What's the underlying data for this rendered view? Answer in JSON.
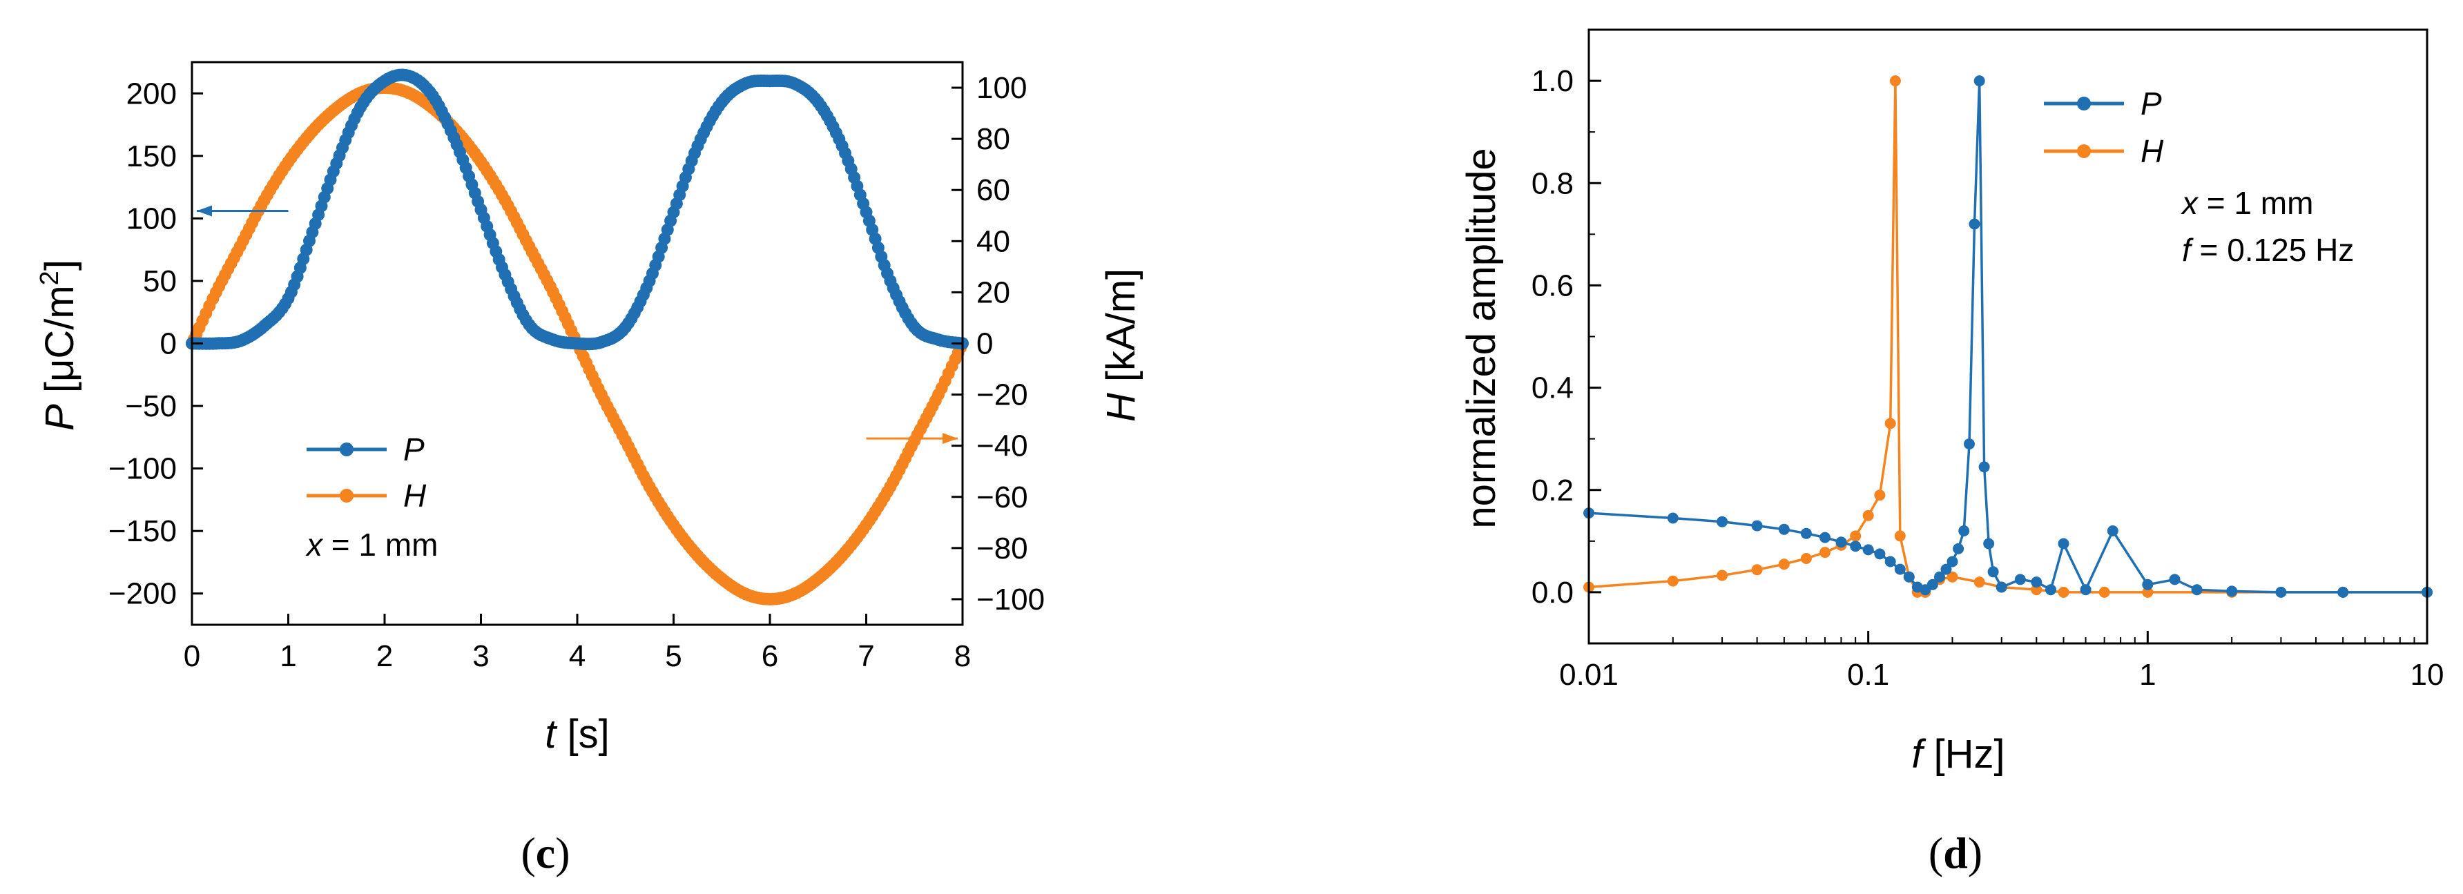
{
  "chart_data": [
    {
      "type": "line",
      "panel_label": "(c)",
      "panel_letter": "c",
      "title": "",
      "xlabel": {
        "var": "t",
        "unit": " [s]"
      },
      "ylabel_left": {
        "var": "P",
        "unit": " [μC/m",
        "sup": "2",
        "close": "]"
      },
      "ylabel_right": {
        "var": "H",
        "unit": " [kA/m]"
      },
      "xlim": [
        0,
        8
      ],
      "ylim_left": [
        -225,
        225
      ],
      "ylim_right": [
        -110,
        110
      ],
      "xticks": [
        0,
        1,
        2,
        3,
        4,
        5,
        6,
        7,
        8
      ],
      "yticks_left": [
        -200,
        -150,
        -100,
        -50,
        0,
        50,
        100,
        150,
        200
      ],
      "yticks_right": [
        -100,
        -80,
        -60,
        -40,
        -20,
        0,
        20,
        40,
        60,
        80,
        100
      ],
      "ytick_labels_left": [
        "−200",
        "−150",
        "−100",
        "−50",
        "0",
        "50",
        "100",
        "150",
        "200"
      ],
      "ytick_labels_right": [
        "−100",
        "−80",
        "−60",
        "−40",
        "−20",
        "0",
        "20",
        "40",
        "60",
        "80",
        "100"
      ],
      "legend": {
        "position": "lower-left",
        "entries": [
          "P",
          "H"
        ],
        "note_var": "x",
        "note_rest": " = 1 mm"
      },
      "series": [
        {
          "name": "P",
          "axis": "left",
          "color": "#1f6fb2",
          "x": [
            0,
            0.25,
            0.5,
            0.75,
            1.0,
            1.25,
            1.5,
            1.75,
            2.0,
            2.25,
            2.5,
            2.75,
            3.0,
            3.25,
            3.5,
            3.75,
            4.0,
            4.25,
            4.5,
            4.75,
            5.0,
            5.25,
            5.5,
            5.75,
            6.0,
            6.25,
            6.5,
            6.75,
            7.0,
            7.25,
            7.5,
            7.75,
            8.0
          ],
          "values": [
            0,
            0,
            2,
            14,
            36,
            89,
            144,
            189,
            210,
            214,
            198,
            159,
            107,
            55,
            15,
            3,
            0,
            1,
            13,
            50,
            105,
            158,
            193,
            208,
            210,
            208,
            193,
            158,
            105,
            50,
            13,
            3,
            0
          ]
        },
        {
          "name": "H",
          "axis": "right",
          "color": "#f5841f",
          "x": [
            0,
            0.25,
            0.5,
            0.75,
            1.0,
            1.25,
            1.5,
            1.75,
            2.0,
            2.25,
            2.5,
            2.75,
            3.0,
            3.25,
            3.5,
            3.75,
            4.0,
            4.25,
            4.5,
            4.75,
            5.0,
            5.25,
            5.5,
            5.75,
            6.0,
            6.25,
            6.5,
            6.75,
            7.0,
            7.25,
            7.5,
            7.75,
            8.0
          ],
          "values": [
            0,
            20,
            38,
            56,
            71,
            83,
            92,
            98,
            100,
            98,
            92,
            83,
            71,
            56,
            38,
            20,
            0,
            -20,
            -38,
            -56,
            -71,
            -83,
            -92,
            -98,
            -100,
            -98,
            -92,
            -83,
            -71,
            -56,
            -38,
            -20,
            0
          ]
        }
      ],
      "annotations": [
        {
          "type": "arrow",
          "points_to": "left-axis",
          "color": "#1f6fb2",
          "x": 1.0,
          "y": 106,
          "x_end": 0.05
        },
        {
          "type": "arrow",
          "points_to": "right-axis",
          "color": "#f5841f",
          "x": 7.0,
          "y": -76,
          "x_end": 7.95
        }
      ]
    },
    {
      "type": "line",
      "panel_label": "(d)",
      "panel_letter": "d",
      "title": "",
      "xscale": "log",
      "xlabel": {
        "var": "f",
        "unit": " [Hz]"
      },
      "ylabel": "normalized amplitude",
      "xlim": [
        0.01,
        10
      ],
      "ylim": [
        -0.1,
        1.1
      ],
      "xticks": [
        0.01,
        0.1,
        1,
        10
      ],
      "xtick_labels": [
        "0.01",
        "0.1",
        "1",
        "10"
      ],
      "yticks": [
        0.0,
        0.2,
        0.4,
        0.6,
        0.8,
        1.0
      ],
      "ytick_labels": [
        "0.0",
        "0.2",
        "0.4",
        "0.6",
        "0.8",
        "1.0"
      ],
      "legend": {
        "position": "top-right",
        "entries": [
          "P",
          "H"
        ],
        "note_lines": [
          {
            "var": "x",
            "rest": " = 1 mm"
          },
          {
            "var": "f",
            "rest": " = 0.125 Hz"
          }
        ]
      },
      "series": [
        {
          "name": "P",
          "color": "#1f6fb2",
          "x": [
            0.01,
            0.02,
            0.03,
            0.04,
            0.05,
            0.06,
            0.07,
            0.08,
            0.09,
            0.1,
            0.11,
            0.12,
            0.13,
            0.14,
            0.15,
            0.16,
            0.17,
            0.18,
            0.19,
            0.2,
            0.21,
            0.22,
            0.23,
            0.24,
            0.25,
            0.26,
            0.27,
            0.28,
            0.3,
            0.35,
            0.4,
            0.45,
            0.5,
            0.6,
            0.75,
            1.0,
            1.25,
            1.5,
            2,
            3,
            5,
            10
          ],
          "values": [
            0.155,
            0.145,
            0.138,
            0.13,
            0.123,
            0.115,
            0.107,
            0.098,
            0.09,
            0.083,
            0.075,
            0.06,
            0.045,
            0.03,
            0.01,
            0.005,
            0.015,
            0.03,
            0.045,
            0.06,
            0.085,
            0.12,
            0.29,
            0.72,
            1.0,
            0.245,
            0.095,
            0.04,
            0.01,
            0.025,
            0.02,
            0.005,
            0.095,
            0.005,
            0.12,
            0.015,
            0.025,
            0.005,
            0.002,
            0.0,
            0.0,
            0.0
          ]
        },
        {
          "name": "H",
          "color": "#f5841f",
          "x": [
            0.01,
            0.02,
            0.03,
            0.04,
            0.05,
            0.06,
            0.07,
            0.08,
            0.09,
            0.1,
            0.11,
            0.12,
            0.125,
            0.13,
            0.14,
            0.15,
            0.16,
            0.18,
            0.2,
            0.25,
            0.3,
            0.4,
            0.5,
            0.7,
            1.0,
            2,
            5,
            10
          ],
          "values": [
            0.01,
            0.022,
            0.033,
            0.044,
            0.055,
            0.066,
            0.078,
            0.092,
            0.11,
            0.15,
            0.19,
            0.33,
            1.0,
            0.11,
            0.03,
            0.0,
            0.0,
            0.025,
            0.03,
            0.02,
            0.01,
            0.005,
            0.0,
            0.0,
            0.0,
            0.0,
            0.0,
            0.0
          ]
        }
      ]
    }
  ]
}
